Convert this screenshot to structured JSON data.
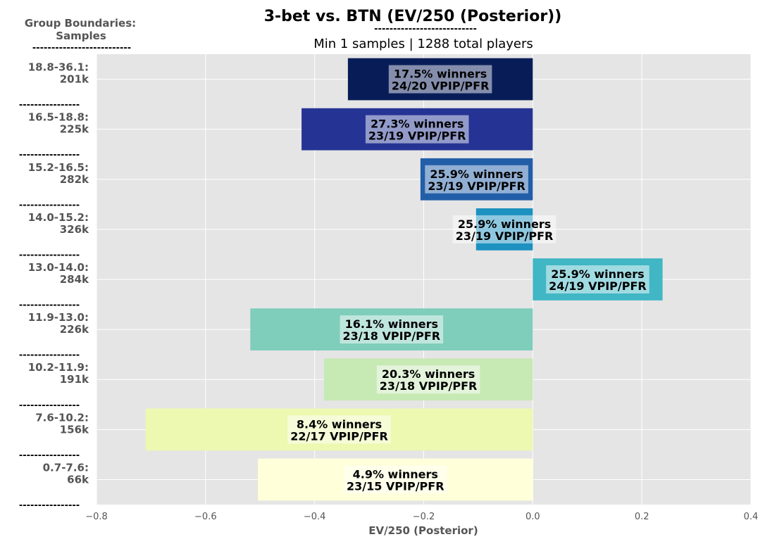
{
  "title": "3-bet vs. BTN (EV/250 (Posterior))",
  "title_underline": "---------------------------",
  "subtitle": "Min 1 samples | 1288 total players",
  "side_header": {
    "line1": "Group Boundaries:",
    "line2": "Samples",
    "underline": "--------------------------"
  },
  "separator": "----------------",
  "chart_data": {
    "type": "bar",
    "orientation": "horizontal",
    "xlabel": "EV/250 (Posterior)",
    "xlim": [
      -0.8,
      0.4
    ],
    "xticks": [
      "−0.8",
      "−0.6",
      "−0.4",
      "−0.2",
      "0.0",
      "0.2",
      "0.4"
    ],
    "xtick_values": [
      -0.8,
      -0.6,
      -0.4,
      -0.2,
      0.0,
      0.2,
      0.4
    ],
    "grid": true,
    "categories": [
      {
        "range": "18.8-36.1:",
        "samples": "201k"
      },
      {
        "range": "16.5-18.8:",
        "samples": "225k"
      },
      {
        "range": "15.2-16.5:",
        "samples": "282k"
      },
      {
        "range": "14.0-15.2:",
        "samples": "326k"
      },
      {
        "range": "13.0-14.0:",
        "samples": "284k"
      },
      {
        "range": "11.9-13.0:",
        "samples": "226k"
      },
      {
        "range": "10.2-11.9:",
        "samples": "191k"
      },
      {
        "range": "7.6-10.2:",
        "samples": "156k"
      },
      {
        "range": "0.7-7.6:",
        "samples": "66k"
      }
    ],
    "values": [
      -0.339,
      -0.424,
      -0.206,
      -0.104,
      0.238,
      -0.518,
      -0.383,
      -0.71,
      -0.504
    ],
    "annotations": [
      {
        "winners": "17.5% winners",
        "vpip": "24/20 VPIP/PFR"
      },
      {
        "winners": "27.3% winners",
        "vpip": "23/19 VPIP/PFR"
      },
      {
        "winners": "25.9% winners",
        "vpip": "23/19 VPIP/PFR"
      },
      {
        "winners": "25.9% winners",
        "vpip": "23/19 VPIP/PFR"
      },
      {
        "winners": "25.9% winners",
        "vpip": "24/19 VPIP/PFR"
      },
      {
        "winners": "16.1% winners",
        "vpip": "23/18 VPIP/PFR"
      },
      {
        "winners": "20.3% winners",
        "vpip": "23/18 VPIP/PFR"
      },
      {
        "winners": "8.4% winners",
        "vpip": "22/17 VPIP/PFR"
      },
      {
        "winners": "4.9% winners",
        "vpip": "23/15 VPIP/PFR"
      }
    ],
    "colors": [
      "#081d58",
      "#253494",
      "#225ea8",
      "#1d91c0",
      "#41b6c4",
      "#7fcdbb",
      "#c7e9b4",
      "#edf8b1",
      "#ffffd9"
    ],
    "background": "#e5e5e5",
    "grid_color": "#ffffff",
    "label_box_color": "#ffffff",
    "label_box_alpha": 0.5
  }
}
